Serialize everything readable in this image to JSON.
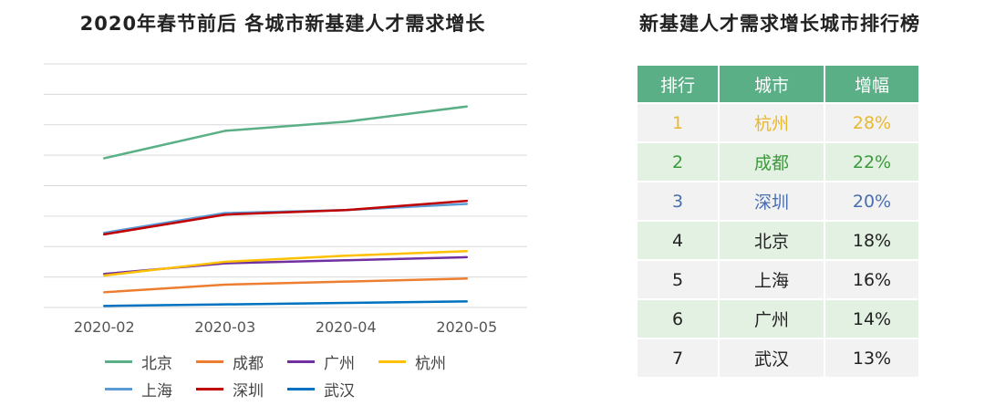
{
  "chart": {
    "title": "2020年春节前后 各城市新基建人才需求增长"
  },
  "chart_data": {
    "type": "line",
    "title": "2020年春节前后 各城市新基建人才需求增长",
    "xlabel": "",
    "ylabel": "",
    "categories": [
      "2020-02",
      "2020-03",
      "2020-04",
      "2020-05"
    ],
    "ylim": [
      0,
      8
    ],
    "grid": true,
    "legend": "bottom",
    "series": [
      {
        "name": "北京",
        "color": "#5aaf86",
        "values": [
          4.9,
          5.8,
          6.1,
          6.6
        ]
      },
      {
        "name": "成都",
        "color": "#ed7d31",
        "values": [
          0.5,
          0.75,
          0.85,
          0.95
        ]
      },
      {
        "name": "广州",
        "color": "#7030a0",
        "values": [
          1.1,
          1.45,
          1.55,
          1.65
        ]
      },
      {
        "name": "杭州",
        "color": "#ffc000",
        "values": [
          1.05,
          1.5,
          1.7,
          1.85
        ]
      },
      {
        "name": "上海",
        "color": "#5b9bd5",
        "values": [
          2.45,
          3.1,
          3.2,
          3.4
        ]
      },
      {
        "name": "深圳",
        "color": "#c00000",
        "values": [
          2.4,
          3.05,
          3.2,
          3.5
        ]
      },
      {
        "name": "武汉",
        "color": "#0070c0",
        "values": [
          0.05,
          0.1,
          0.15,
          0.2
        ]
      }
    ]
  },
  "legend_rows": [
    [
      {
        "name": "北京",
        "color": "#5aaf86"
      },
      {
        "name": "成都",
        "color": "#ed7d31"
      },
      {
        "name": "广州",
        "color": "#7030a0"
      },
      {
        "name": "杭州",
        "color": "#ffc000"
      }
    ],
    [
      {
        "name": "上海",
        "color": "#5b9bd5"
      },
      {
        "name": "深圳",
        "color": "#c00000"
      },
      {
        "name": "武汉",
        "color": "#0070c0"
      }
    ]
  ],
  "ranking": {
    "title": "新基建人才需求增长城市排行榜",
    "headers": {
      "rank": "排行",
      "city": "城市",
      "growth": "增幅"
    },
    "rows": [
      {
        "rank": "1",
        "city": "杭州",
        "growth": "28%",
        "color": "#e8b830"
      },
      {
        "rank": "2",
        "city": "成都",
        "growth": "22%",
        "color": "#3c9a3c"
      },
      {
        "rank": "3",
        "city": "深圳",
        "growth": "20%",
        "color": "#4a6fb0"
      },
      {
        "rank": "4",
        "city": "北京",
        "growth": "18%",
        "color": "#222222"
      },
      {
        "rank": "5",
        "city": "上海",
        "growth": "16%",
        "color": "#222222"
      },
      {
        "rank": "6",
        "city": "广州",
        "growth": "14%",
        "color": "#222222"
      },
      {
        "rank": "7",
        "city": "武汉",
        "growth": "13%",
        "color": "#222222"
      }
    ]
  }
}
